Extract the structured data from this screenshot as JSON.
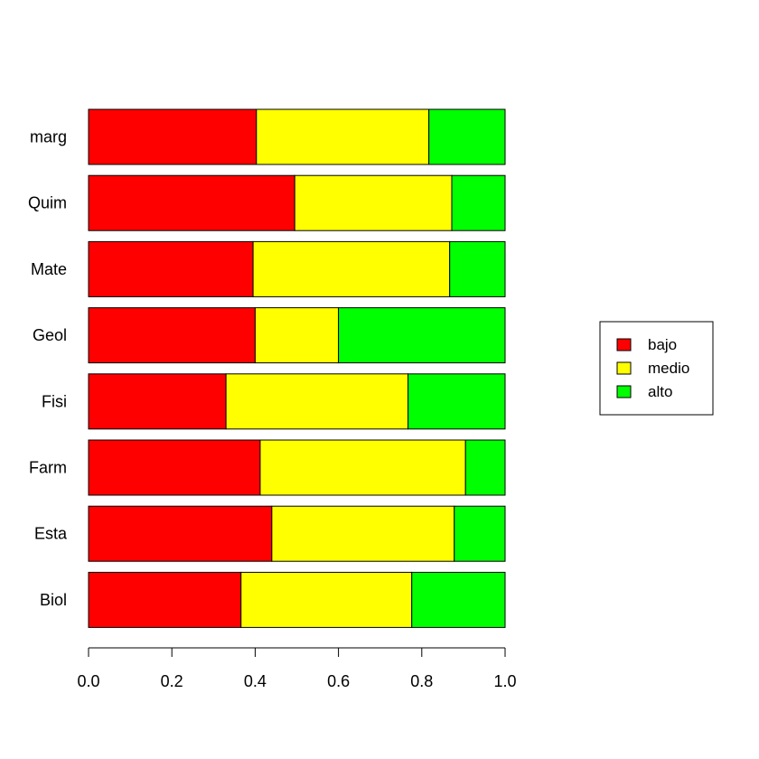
{
  "chart_data": {
    "type": "bar",
    "orientation": "horizontal",
    "stacked": true,
    "title": "",
    "xlabel": "",
    "ylabel": "",
    "xlim": [
      0,
      1
    ],
    "x_ticks": [
      "0.0",
      "0.2",
      "0.4",
      "0.6",
      "0.8",
      "1.0"
    ],
    "grid": false,
    "legend_position": "right",
    "categories": [
      "Biol",
      "Esta",
      "Farm",
      "Fisi",
      "Geol",
      "Mate",
      "Quim",
      "marg"
    ],
    "series": [
      {
        "name": "bajo",
        "color": "#ff0000",
        "values": [
          0.366,
          0.44,
          0.412,
          0.33,
          0.4,
          0.395,
          0.495,
          0.403
        ]
      },
      {
        "name": "medio",
        "color": "#ffff00",
        "values": [
          0.41,
          0.438,
          0.493,
          0.437,
          0.2,
          0.472,
          0.377,
          0.414
        ]
      },
      {
        "name": "alto",
        "color": "#00ff00",
        "values": [
          0.224,
          0.122,
          0.095,
          0.233,
          0.4,
          0.133,
          0.128,
          0.183
        ]
      }
    ]
  }
}
